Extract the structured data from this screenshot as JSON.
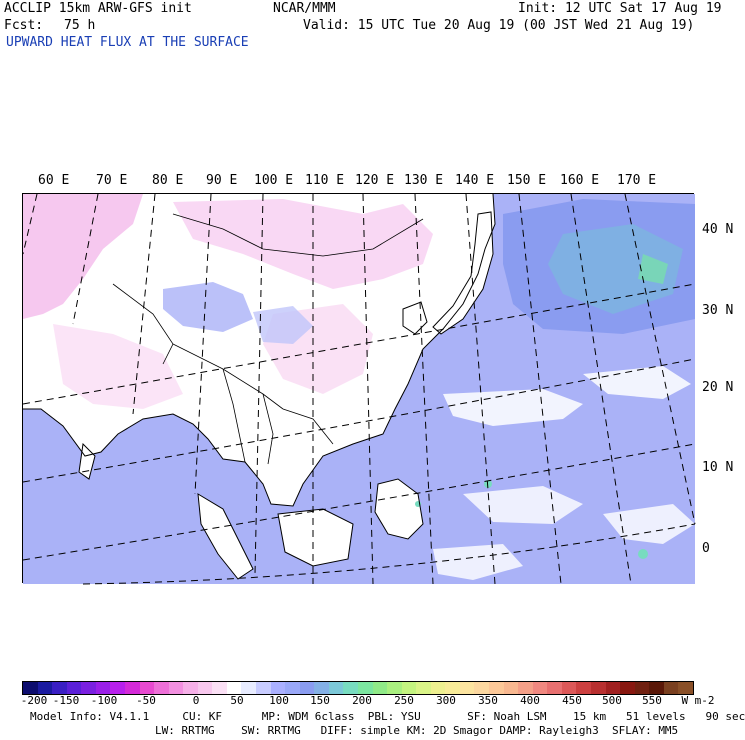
{
  "header": {
    "model": "ACCLIP 15km ARW-GFS init",
    "org": "NCAR/MMM",
    "init": "Init: 12 UTC Sat 17 Aug 19",
    "fcst_label": "Fcst:",
    "fcst_value": "75 h",
    "valid": "Valid: 15 UTC Tue 20 Aug 19 (00 JST Wed 21 Aug 19)",
    "field_title": "UPWARD HEAT FLUX AT THE SURFACE"
  },
  "map": {
    "lon_labels": [
      "60 E",
      "70 E",
      "80 E",
      "90 E",
      "100 E",
      "110 E",
      "120 E",
      "130 E",
      "140 E",
      "150 E",
      "160 E",
      "170 E"
    ],
    "lat_labels": [
      "40 N",
      "30 N",
      "20 N",
      "10 N",
      "0"
    ]
  },
  "colorbar": {
    "ticks": [
      "-200",
      "-150",
      "-100",
      "-50",
      "0",
      "50",
      "100",
      "150",
      "200",
      "250",
      "300",
      "350",
      "400",
      "450",
      "500",
      "550"
    ],
    "units": "W m-2",
    "colors": [
      "#0d0d6e",
      "#1b1ba0",
      "#3a1fc4",
      "#5b20d8",
      "#7a20e0",
      "#9a1fe8",
      "#b820ec",
      "#d42ad8",
      "#e84ad0",
      "#ee70d8",
      "#f290e0",
      "#f6b0e8",
      "#f8c8ee",
      "#fbe0f5",
      "#ffffff",
      "#e8ecff",
      "#c8ccff",
      "#aab0ff",
      "#9aa8f8",
      "#8a9cf0",
      "#84b0e6",
      "#7cc8d8",
      "#78dcc0",
      "#7ce6a0",
      "#90ea88",
      "#aaf080",
      "#c4f480",
      "#daf488",
      "#eef090",
      "#f8ec98",
      "#fce4a0",
      "#fcd8a0",
      "#fcc898",
      "#f8b890",
      "#f4a088",
      "#f08880",
      "#e87070",
      "#dc5858",
      "#cc4040",
      "#b83030",
      "#a02020",
      "#881810",
      "#702010",
      "#5a1808",
      "#7a4020",
      "#8a5028"
    ]
  },
  "model_info": {
    "line1": "Model Info: V4.1.1     CU: KF      MP: WDM 6class  PBL: YSU       SF: Noah LSM    15 km   51 levels   90 sec",
    "line2": "LW: RRTMG    SW: RRTMG   DIFF: simple KM: 2D Smagor DAMP: Rayleigh3  SFLAY: MM5"
  }
}
